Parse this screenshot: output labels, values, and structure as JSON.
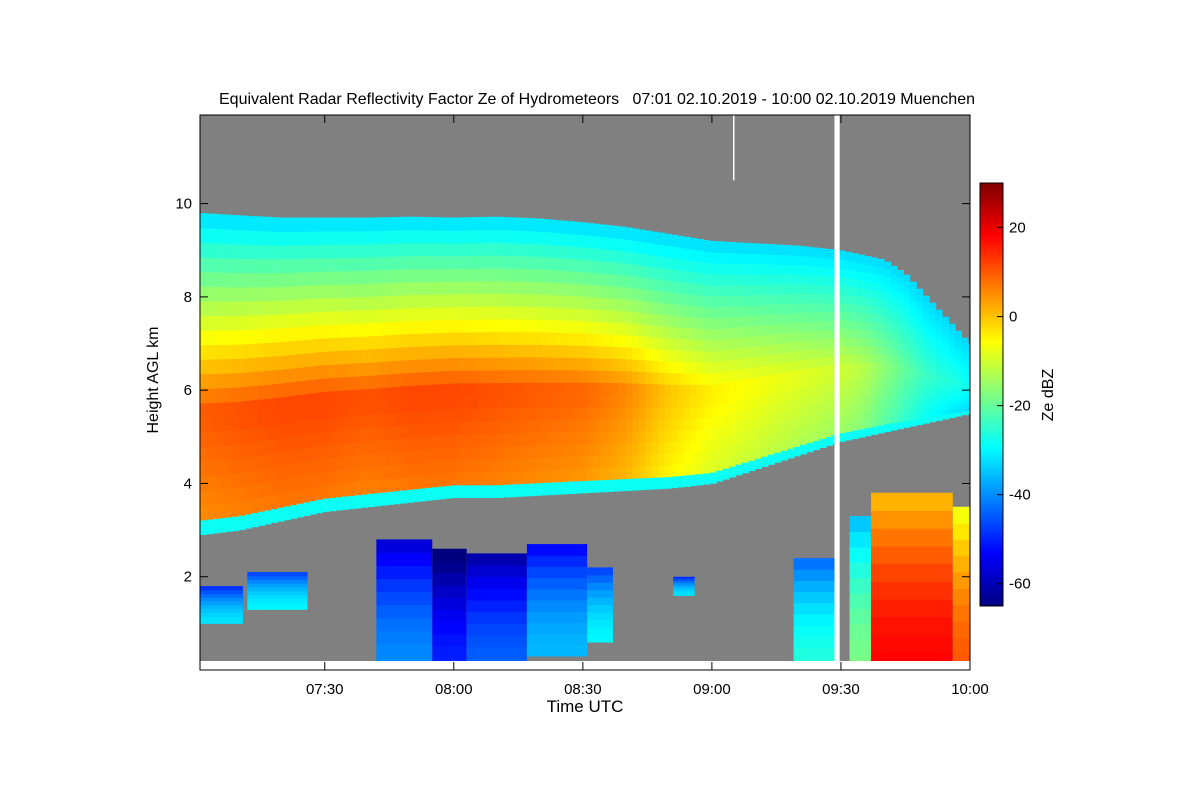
{
  "colors": {
    "background": "#ffffff",
    "plot_background": "#808080",
    "gap": "#ffffff",
    "colormap": [
      "#00007f",
      "#0000ff",
      "#0080ff",
      "#00ffff",
      "#80ff80",
      "#ffff00",
      "#ff8000",
      "#ff0000",
      "#7f0000"
    ]
  },
  "chart_data": {
    "type": "heatmap",
    "title": "Equivalent Radar Reflectivity Factor Ze of Hydrometeors   07:01 02.10.2019 - 10:00 02.10.2019 Muenchen",
    "xlabel": "Time UTC",
    "ylabel": "Height AGL km",
    "x_range": [
      "07:01",
      "10:00"
    ],
    "xlim_minutes": [
      421,
      600
    ],
    "ylim": [
      0,
      11.9
    ],
    "x_ticks": [
      {
        "value": 450,
        "label": "07:30"
      },
      {
        "value": 480,
        "label": "08:00"
      },
      {
        "value": 510,
        "label": "08:30"
      },
      {
        "value": 540,
        "label": "09:00"
      },
      {
        "value": 570,
        "label": "09:30"
      },
      {
        "value": 600,
        "label": "10:00"
      }
    ],
    "y_ticks": [
      {
        "value": 2,
        "label": "2"
      },
      {
        "value": 4,
        "label": "4"
      },
      {
        "value": 6,
        "label": "6"
      },
      {
        "value": 8,
        "label": "8"
      },
      {
        "value": 10,
        "label": "10"
      }
    ],
    "colorbar": {
      "label": "Ze dBZ",
      "range": [
        -65,
        30
      ],
      "ticks": [
        {
          "value": 20,
          "label": "20"
        },
        {
          "value": 0,
          "label": "0"
        },
        {
          "value": -20,
          "label": "-20"
        },
        {
          "value": -40,
          "label": "-40"
        },
        {
          "value": -60,
          "label": "-60"
        }
      ]
    },
    "upper_cloud": {
      "time": [
        421,
        430,
        440,
        450,
        460,
        470,
        480,
        490,
        500,
        510,
        520,
        530,
        540,
        550,
        560,
        570,
        575,
        580,
        585,
        590,
        595,
        600
      ],
      "top_km": [
        9.8,
        9.75,
        9.7,
        9.7,
        9.7,
        9.72,
        9.7,
        9.72,
        9.68,
        9.6,
        9.5,
        9.35,
        9.2,
        9.15,
        9.1,
        9.0,
        8.9,
        8.8,
        8.5,
        8.0,
        7.5,
        7.0
      ],
      "base_km": [
        2.9,
        3.0,
        3.2,
        3.4,
        3.5,
        3.6,
        3.7,
        3.7,
        3.75,
        3.8,
        3.85,
        3.9,
        4.0,
        4.3,
        4.6,
        4.9,
        5.0,
        5.1,
        5.2,
        5.3,
        5.4,
        5.5
      ],
      "max_dbz": [
        10,
        11,
        12,
        12,
        11,
        12,
        12,
        11,
        10,
        9,
        6,
        0,
        -4,
        -6,
        -8,
        -10,
        -12,
        -16,
        -20,
        -24,
        -26,
        -28
      ]
    },
    "low_clouds": [
      {
        "t0": 421,
        "t1": 431,
        "bottom_km": 1.0,
        "top_km": 1.8,
        "dbz": -32
      },
      {
        "t0": 432,
        "t1": 446,
        "bottom_km": 1.3,
        "top_km": 2.1,
        "dbz": -30
      },
      {
        "t0": 462,
        "t1": 475,
        "bottom_km": 0.0,
        "top_km": 2.8,
        "dbz": -40
      },
      {
        "t0": 475,
        "t1": 483,
        "bottom_km": 0.0,
        "top_km": 2.6,
        "dbz": -50
      },
      {
        "t0": 483,
        "t1": 497,
        "bottom_km": 0.0,
        "top_km": 2.5,
        "dbz": -44
      },
      {
        "t0": 497,
        "t1": 511,
        "bottom_km": 0.3,
        "top_km": 2.7,
        "dbz": -36
      },
      {
        "t0": 511,
        "t1": 517,
        "bottom_km": 0.6,
        "top_km": 2.2,
        "dbz": -30
      },
      {
        "t0": 531,
        "t1": 536,
        "bottom_km": 1.6,
        "top_km": 2.0,
        "dbz": -32
      },
      {
        "t0": 559,
        "t1": 569,
        "bottom_km": 0.0,
        "top_km": 2.4,
        "dbz": -26
      },
      {
        "t0": 572,
        "t1": 577,
        "bottom_km": 0.0,
        "top_km": 3.3,
        "dbz": -18
      },
      {
        "t0": 577,
        "t1": 596,
        "bottom_km": 0.0,
        "top_km": 3.8,
        "dbz": 18
      },
      {
        "t0": 596,
        "t1": 600,
        "bottom_km": 0.0,
        "top_km": 3.5,
        "dbz": 10
      }
    ],
    "data_gaps": [
      {
        "t0": 568.5,
        "t1": 569.7,
        "bottom_km": 0.0,
        "top_km": 11.9
      },
      {
        "t0": 544.9,
        "t1": 545.1,
        "bottom_km": 10.5,
        "top_km": 11.9
      }
    ]
  }
}
